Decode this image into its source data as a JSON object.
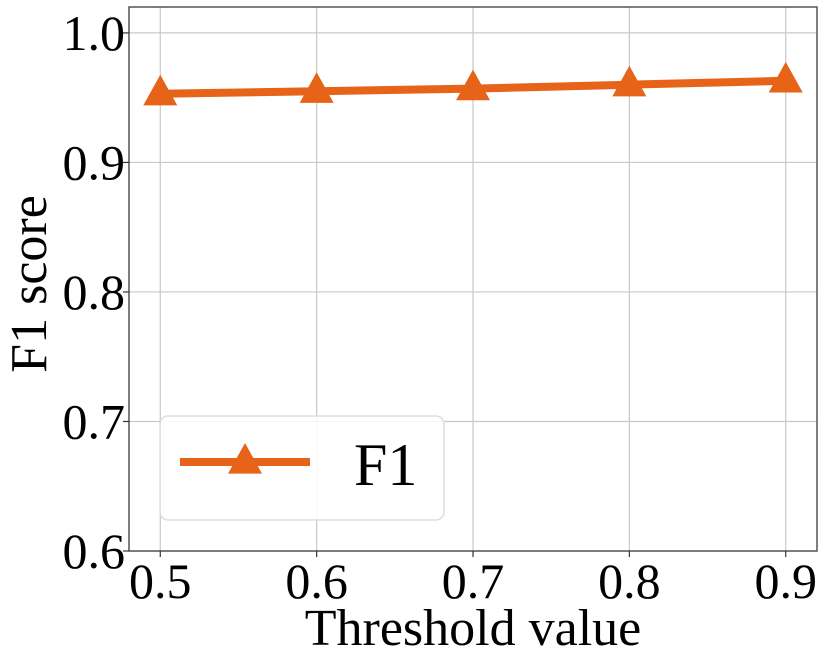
{
  "chart_data": {
    "type": "line",
    "xlabel": "Threshold value",
    "ylabel": "F1 score",
    "x": [
      0.5,
      0.6,
      0.7,
      0.8,
      0.9
    ],
    "xticks": [
      "0.5",
      "0.6",
      "0.7",
      "0.8",
      "0.9"
    ],
    "yticks": [
      "0.6",
      "0.7",
      "0.8",
      "0.9",
      "1.0"
    ],
    "xlim": [
      0.48,
      0.92
    ],
    "ylim": [
      0.6,
      1.02
    ],
    "grid": true,
    "legend_position": "lower-left",
    "series": [
      {
        "name": "F1",
        "values": [
          0.953,
          0.955,
          0.957,
          0.96,
          0.963
        ],
        "color": "#E66318",
        "marker": "triangle"
      }
    ]
  }
}
